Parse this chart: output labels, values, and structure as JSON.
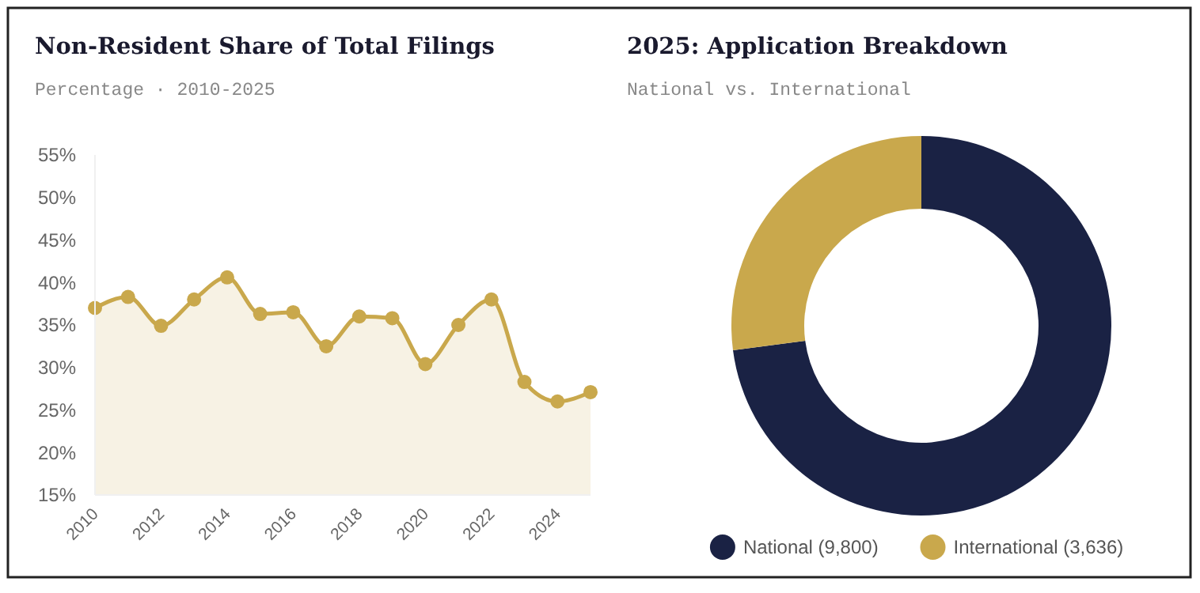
{
  "chart_data": [
    {
      "type": "area",
      "title": "Non-Resident Share of Total Filings",
      "subtitle": "Percentage · 2010-2025",
      "x": [
        2010,
        2011,
        2012,
        2013,
        2014,
        2015,
        2016,
        2017,
        2018,
        2019,
        2020,
        2021,
        2022,
        2023,
        2024,
        2025
      ],
      "series": [
        {
          "color": "#c9a84c",
          "values": [
            37.0,
            38.3,
            34.9,
            38.0,
            40.6,
            36.3,
            36.5,
            32.5,
            36.0,
            35.8,
            30.4,
            35.0,
            38.0,
            28.3,
            26.0,
            27.1
          ]
        }
      ],
      "xlim": [
        2010,
        2025
      ],
      "xticks": [
        2010,
        2012,
        2014,
        2016,
        2018,
        2020,
        2022,
        2024
      ],
      "ylim": [
        15,
        55
      ],
      "yticks": [
        {
          "value": 15,
          "label": "15%"
        },
        {
          "value": 20,
          "label": "20%"
        },
        {
          "value": 25,
          "label": "25%"
        },
        {
          "value": 30,
          "label": "30%"
        },
        {
          "value": 35,
          "label": "35%"
        },
        {
          "value": 40,
          "label": "40%"
        },
        {
          "value": 45,
          "label": "45%"
        },
        {
          "value": 50,
          "label": "50%"
        },
        {
          "value": 55,
          "label": "55%"
        }
      ],
      "marker": "circle",
      "grid": false
    },
    {
      "type": "donut",
      "title": "2025: Application Breakdown",
      "subtitle": "National vs. International",
      "categories": [
        "National (9,800)",
        "International (3,636)"
      ],
      "values": [
        9800,
        3636
      ],
      "colors": [
        "#1a2244",
        "#c9a84c"
      ],
      "legend": "bottom"
    }
  ]
}
